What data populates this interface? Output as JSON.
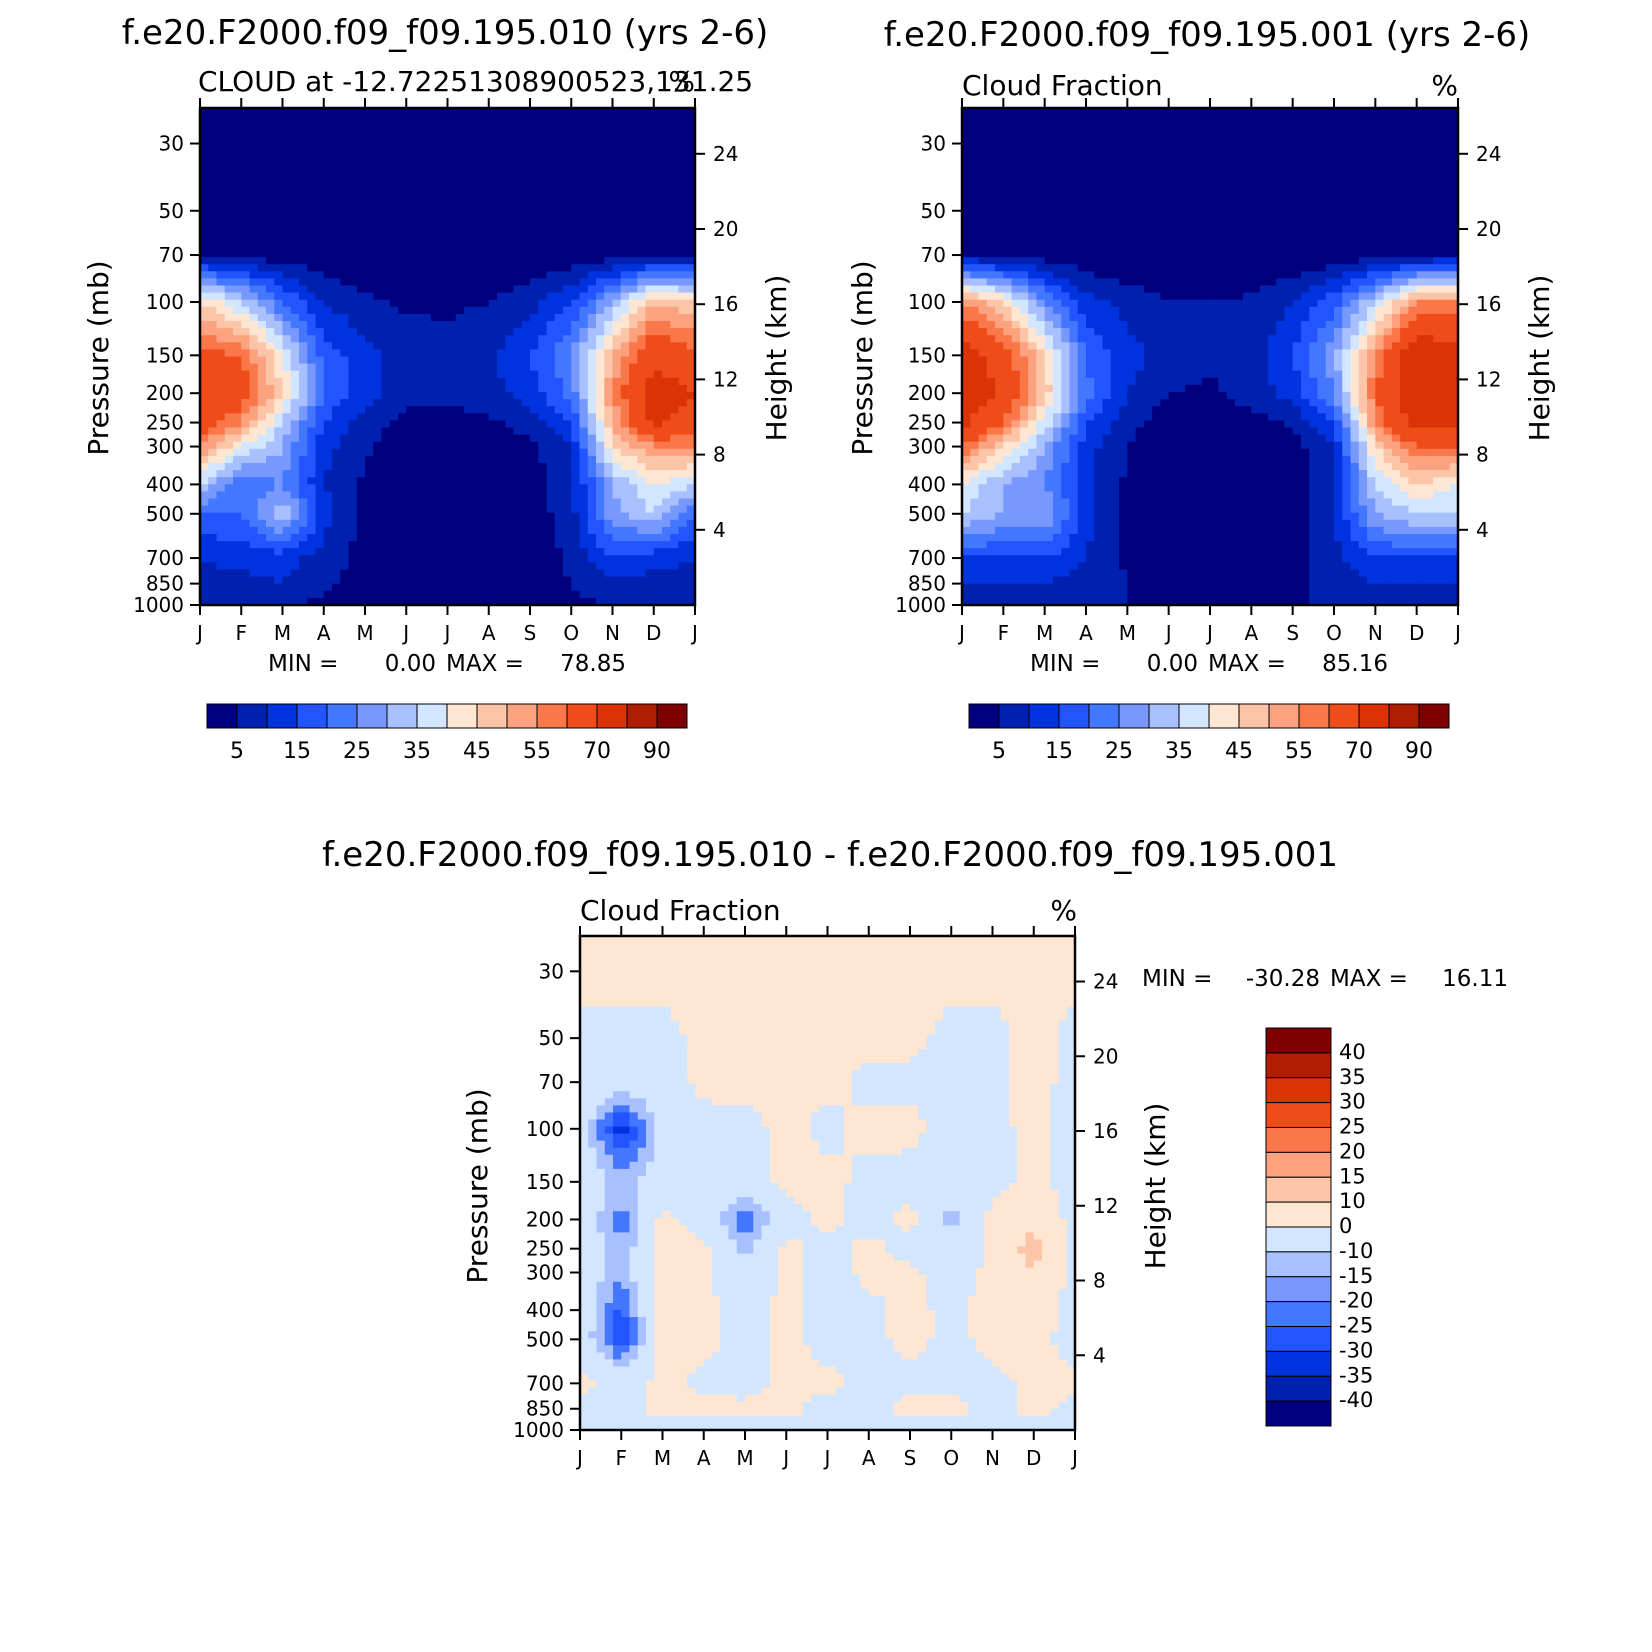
{
  "chart_data": [
    {
      "type": "heatmap",
      "title": "f.e20.F2000.f09_f09.195.010 (yrs 2-6)",
      "subtitle_left": "CLOUD at -12.72251308900523,131.25",
      "subtitle_right": "%",
      "ylabel": "Pressure (mb)",
      "ylabel_right": "Height (km)",
      "xlabel": "",
      "x_ticks": [
        "J",
        "F",
        "M",
        "A",
        "M",
        "J",
        "J",
        "A",
        "S",
        "O",
        "N",
        "D",
        "J"
      ],
      "y_ticks": [
        "30",
        "50",
        "70",
        "100",
        "150",
        "200",
        "250",
        "300",
        "400",
        "500",
        "700",
        "850",
        "1000"
      ],
      "y_right_ticks": [
        "24",
        "20",
        "16",
        "12",
        "8",
        "4"
      ],
      "stats": {
        "min_label": "MIN =",
        "min": "0.00",
        "max_label": "MAX =",
        "max": "78.85"
      },
      "colorbar_labels": [
        "5",
        "15",
        "25",
        "35",
        "45",
        "55",
        "70",
        "90"
      ],
      "colorbar_levels": [
        0,
        5,
        10,
        15,
        20,
        25,
        30,
        35,
        40,
        45,
        50,
        55,
        60,
        70,
        80,
        90
      ],
      "x": [
        "J",
        "F",
        "M",
        "A",
        "M",
        "J",
        "J",
        "A",
        "S",
        "O",
        "N",
        "D",
        "J"
      ],
      "pressure_levels": [
        30,
        50,
        70,
        100,
        150,
        200,
        250,
        300,
        400,
        500,
        700,
        850,
        1000
      ],
      "values": [
        [
          0,
          0,
          0,
          0,
          0,
          0,
          0,
          0,
          0,
          0,
          0,
          0,
          0
        ],
        [
          0,
          0,
          0,
          0,
          0,
          0,
          0,
          0,
          0,
          0,
          0,
          0,
          0
        ],
        [
          5,
          3,
          2,
          1,
          0,
          0,
          0,
          0,
          0,
          1,
          2,
          3,
          5
        ],
        [
          45,
          35,
          20,
          10,
          6,
          4,
          4,
          5,
          8,
          15,
          30,
          50,
          45
        ],
        [
          62,
          60,
          40,
          18,
          12,
          8,
          7,
          9,
          15,
          25,
          50,
          68,
          62
        ],
        [
          70,
          65,
          45,
          20,
          12,
          7,
          6,
          8,
          12,
          22,
          55,
          75,
          70
        ],
        [
          65,
          55,
          35,
          15,
          8,
          3,
          3,
          4,
          7,
          15,
          50,
          72,
          65
        ],
        [
          55,
          40,
          30,
          12,
          6,
          2,
          1,
          2,
          4,
          10,
          45,
          55,
          55
        ],
        [
          35,
          20,
          25,
          10,
          4,
          1,
          1,
          1,
          2,
          8,
          30,
          40,
          35
        ],
        [
          20,
          20,
          35,
          12,
          3,
          1,
          1,
          1,
          2,
          8,
          28,
          35,
          20
        ],
        [
          10,
          12,
          12,
          8,
          3,
          1,
          1,
          1,
          2,
          6,
          15,
          12,
          10
        ],
        [
          8,
          8,
          10,
          6,
          3,
          2,
          2,
          2,
          3,
          5,
          8,
          8,
          8
        ],
        [
          5,
          5,
          5,
          4,
          4,
          3,
          3,
          3,
          4,
          4,
          5,
          5,
          5
        ]
      ]
    },
    {
      "type": "heatmap",
      "title": "f.e20.F2000.f09_f09.195.001 (yrs 2-6)",
      "subtitle_left": "Cloud Fraction",
      "subtitle_right": "%",
      "ylabel": "Pressure (mb)",
      "ylabel_right": "Height (km)",
      "xlabel": "",
      "x_ticks": [
        "J",
        "F",
        "M",
        "A",
        "M",
        "J",
        "J",
        "A",
        "S",
        "O",
        "N",
        "D",
        "J"
      ],
      "y_ticks": [
        "30",
        "50",
        "70",
        "100",
        "150",
        "200",
        "250",
        "300",
        "400",
        "500",
        "700",
        "850",
        "1000"
      ],
      "y_right_ticks": [
        "24",
        "20",
        "16",
        "12",
        "8",
        "4"
      ],
      "stats": {
        "min_label": "MIN =",
        "min": "0.00",
        "max_label": "MAX =",
        "max": "85.16"
      },
      "colorbar_labels": [
        "5",
        "15",
        "25",
        "35",
        "45",
        "55",
        "70",
        "90"
      ],
      "colorbar_levels": [
        0,
        5,
        10,
        15,
        20,
        25,
        30,
        35,
        40,
        45,
        50,
        55,
        60,
        70,
        80,
        90
      ],
      "x": [
        "J",
        "F",
        "M",
        "A",
        "M",
        "J",
        "J",
        "A",
        "S",
        "O",
        "N",
        "D",
        "J"
      ],
      "pressure_levels": [
        30,
        50,
        70,
        100,
        150,
        200,
        250,
        300,
        400,
        500,
        700,
        850,
        1000
      ],
      "values": [
        [
          0,
          0,
          0,
          0,
          0,
          0,
          0,
          0,
          0,
          0,
          0,
          0,
          0
        ],
        [
          0,
          0,
          0,
          0,
          0,
          0,
          0,
          0,
          0,
          0,
          0,
          0,
          0
        ],
        [
          5,
          3,
          2,
          1,
          0,
          0,
          0,
          0,
          0,
          1,
          2,
          3,
          5
        ],
        [
          55,
          45,
          25,
          12,
          8,
          5,
          5,
          6,
          10,
          18,
          35,
          55,
          55
        ],
        [
          75,
          65,
          45,
          20,
          12,
          8,
          6,
          8,
          15,
          28,
          55,
          78,
          75
        ],
        [
          78,
          68,
          48,
          22,
          10,
          5,
          4,
          7,
          12,
          25,
          60,
          80,
          78
        ],
        [
          72,
          60,
          38,
          16,
          7,
          2,
          2,
          3,
          6,
          15,
          55,
          75,
          72
        ],
        [
          60,
          45,
          30,
          12,
          5,
          1,
          1,
          1,
          3,
          10,
          45,
          60,
          60
        ],
        [
          40,
          30,
          25,
          12,
          4,
          1,
          1,
          1,
          2,
          10,
          35,
          45,
          40
        ],
        [
          35,
          30,
          30,
          12,
          3,
          1,
          1,
          1,
          2,
          10,
          30,
          35,
          35
        ],
        [
          15,
          15,
          15,
          10,
          4,
          1,
          1,
          1,
          3,
          8,
          15,
          15,
          15
        ],
        [
          10,
          10,
          10,
          8,
          5,
          3,
          2,
          3,
          4,
          6,
          10,
          10,
          10
        ],
        [
          6,
          6,
          6,
          5,
          5,
          4,
          4,
          4,
          5,
          5,
          6,
          6,
          6
        ]
      ]
    },
    {
      "type": "heatmap",
      "title": "f.e20.F2000.f09_f09.195.010 - f.e20.F2000.f09_f09.195.001",
      "subtitle_left": "Cloud Fraction",
      "subtitle_right": "%",
      "ylabel": "Pressure (mb)",
      "ylabel_right": "Height (km)",
      "xlabel": "",
      "x_ticks": [
        "J",
        "F",
        "M",
        "A",
        "M",
        "J",
        "J",
        "A",
        "S",
        "O",
        "N",
        "D",
        "J"
      ],
      "y_ticks": [
        "30",
        "50",
        "70",
        "100",
        "150",
        "200",
        "250",
        "300",
        "400",
        "500",
        "700",
        "850",
        "1000"
      ],
      "y_right_ticks": [
        "24",
        "20",
        "16",
        "12",
        "8",
        "4"
      ],
      "stats": {
        "min_label": "MIN =",
        "min": "-30.28",
        "max_label": "MAX =",
        "max": "16.11"
      },
      "colorbar_labels": [
        "40",
        "35",
        "30",
        "25",
        "20",
        "15",
        "10",
        "0",
        "-10",
        "-15",
        "-20",
        "-25",
        "-30",
        "-35",
        "-40"
      ],
      "colorbar_levels": [
        -40,
        -35,
        -30,
        -25,
        -20,
        -15,
        -10,
        0,
        10,
        15,
        20,
        25,
        30,
        35,
        40
      ],
      "x": [
        "J",
        "F",
        "M",
        "A",
        "M",
        "J",
        "J",
        "A",
        "S",
        "O",
        "N",
        "D",
        "J"
      ],
      "pressure_levels": [
        30,
        50,
        70,
        100,
        150,
        200,
        250,
        300,
        400,
        500,
        700,
        850,
        1000
      ],
      "values": [
        [
          2,
          2,
          2,
          2,
          2,
          2,
          2,
          2,
          2,
          2,
          2,
          2,
          2
        ],
        [
          -2,
          -2,
          -2,
          2,
          2,
          2,
          2,
          2,
          2,
          -2,
          -2,
          2,
          -2
        ],
        [
          -3,
          -6,
          -3,
          2,
          2,
          2,
          2,
          -2,
          -2,
          -3,
          -2,
          3,
          -3
        ],
        [
          -5,
          -28,
          -8,
          -3,
          -2,
          2,
          -2,
          2,
          2,
          -2,
          -3,
          3,
          -5
        ],
        [
          -4,
          -12,
          -5,
          -3,
          -3,
          2,
          2,
          -2,
          -3,
          -8,
          -3,
          2,
          -4
        ],
        [
          -3,
          -18,
          2,
          -4,
          -20,
          -3,
          2,
          -3,
          2,
          -12,
          2,
          8,
          -3
        ],
        [
          -3,
          -15,
          3,
          2,
          -12,
          2,
          -3,
          2,
          -3,
          -8,
          2,
          14,
          -3
        ],
        [
          -3,
          -14,
          3,
          2,
          -8,
          2,
          -4,
          2,
          2,
          -4,
          2,
          10,
          -3
        ],
        [
          -4,
          -22,
          3,
          2,
          -3,
          2,
          -3,
          -2,
          2,
          -2,
          3,
          6,
          -4
        ],
        [
          -4,
          -25,
          3,
          2,
          -2,
          2,
          -3,
          -2,
          2,
          -2,
          2,
          3,
          -4
        ],
        [
          2,
          -3,
          2,
          -2,
          -3,
          2,
          2,
          -2,
          -2,
          -2,
          -2,
          2,
          2
        ],
        [
          -2,
          -2,
          2,
          2,
          2,
          2,
          -3,
          -2,
          2,
          2,
          -3,
          2,
          -2
        ],
        [
          -2,
          -2,
          -2,
          -2,
          -2,
          -2,
          -2,
          -2,
          -2,
          -2,
          -2,
          -2,
          -2
        ]
      ]
    }
  ],
  "colors": {
    "pos_scale": [
      "#00007f",
      "#0020b0",
      "#0033e0",
      "#2255ff",
      "#4477ff",
      "#7799ff",
      "#a8c0ff",
      "#d2e6ff",
      "#fee6d2",
      "#fcc5a8",
      "#fca27f",
      "#f97748",
      "#ef4c1a",
      "#db3207",
      "#b01e00",
      "#7f0000"
    ],
    "diff_scale": [
      "#00007f",
      "#0020b0",
      "#0033e0",
      "#2255ff",
      "#4477ff",
      "#7799ff",
      "#a8c0ff",
      "#d2e6ff",
      "#fee6d2",
      "#fcc5a8",
      "#fca27f",
      "#f97748",
      "#ef4c1a",
      "#db3207",
      "#b01e00",
      "#7f0000"
    ]
  }
}
